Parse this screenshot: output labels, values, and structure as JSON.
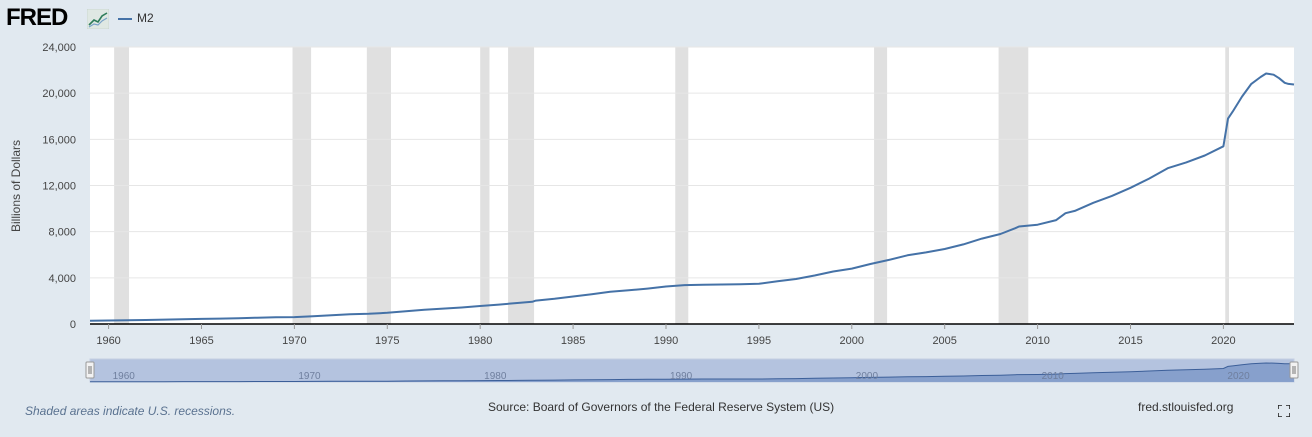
{
  "header": {
    "logo_text": "FRED",
    "legend_label": "M2"
  },
  "footer": {
    "recession_note": "Shaded areas indicate U.S. recessions.",
    "source": "Source: Board of Governors of the Federal Reserve System (US)",
    "site": "fred.stlouisfed.org"
  },
  "colors": {
    "series": "#4572a7",
    "recession": "#e0e0e0",
    "background": "#e1e9f0",
    "navigator_fill": "#b4c3df"
  },
  "chart_data": {
    "type": "line",
    "title": "",
    "xlabel": "",
    "ylabel": "Billions of Dollars",
    "xlim": [
      1959,
      2023.8
    ],
    "ylim": [
      0,
      24000
    ],
    "y_ticks": [
      "0",
      "4,000",
      "8,000",
      "12,000",
      "16,000",
      "20,000",
      "24,000"
    ],
    "x_ticks": [
      "1960",
      "1965",
      "1970",
      "1975",
      "1980",
      "1985",
      "1990",
      "1995",
      "2000",
      "2005",
      "2010",
      "2015",
      "2020"
    ],
    "navigator_ticks": [
      "1960",
      "1970",
      "1980",
      "1990",
      "2000",
      "2010",
      "2020"
    ],
    "grid": true,
    "recessions": [
      [
        1960.3,
        1961.1
      ],
      [
        1969.9,
        1970.9
      ],
      [
        1973.9,
        1975.2
      ],
      [
        1980.0,
        1980.5
      ],
      [
        1981.5,
        1982.9
      ],
      [
        1990.5,
        1991.2
      ],
      [
        2001.2,
        2001.9
      ],
      [
        2007.9,
        2009.5
      ],
      [
        2020.1,
        2020.3
      ]
    ],
    "series": [
      {
        "name": "M2",
        "x": [
          1959,
          1960,
          1961,
          1962,
          1963,
          1964,
          1965,
          1966,
          1967,
          1968,
          1969,
          1970,
          1971,
          1972,
          1973,
          1974,
          1975,
          1976,
          1977,
          1978,
          1979,
          1980,
          1981,
          1982,
          1982.8,
          1983,
          1984,
          1985,
          1986,
          1987,
          1988,
          1989,
          1990,
          1991,
          1992,
          1993,
          1994,
          1995,
          1996,
          1997,
          1998,
          1999,
          2000,
          2001,
          2002,
          2003,
          2004,
          2005,
          2006,
          2007,
          2008,
          2008.8,
          2009,
          2010,
          2011,
          2011.5,
          2012,
          2013,
          2014,
          2015,
          2016,
          2017,
          2018,
          2019,
          2020.0,
          2020.25,
          2020.5,
          2021.0,
          2021.5,
          2022.0,
          2022.3,
          2022.7,
          2023.0,
          2023.3,
          2023.5,
          2023.8
        ],
        "values": [
          290,
          305,
          325,
          350,
          380,
          410,
          445,
          470,
          505,
          550,
          580,
          600,
          670,
          760,
          840,
          880,
          970,
          1100,
          1240,
          1330,
          1430,
          1560,
          1680,
          1820,
          1920,
          2030,
          2180,
          2380,
          2580,
          2800,
          2920,
          3070,
          3250,
          3370,
          3400,
          3420,
          3450,
          3480,
          3700,
          3900,
          4200,
          4550,
          4800,
          5200,
          5550,
          5950,
          6200,
          6500,
          6900,
          7400,
          7800,
          8300,
          8450,
          8600,
          9000,
          9600,
          9800,
          10500,
          11100,
          11800,
          12600,
          13500,
          14000,
          14600,
          15400,
          17800,
          18400,
          19700,
          20800,
          21400,
          21700,
          21600,
          21300,
          20900,
          20800,
          20750
        ]
      }
    ]
  }
}
